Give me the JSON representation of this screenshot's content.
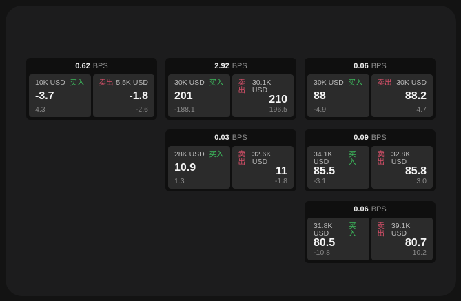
{
  "labels": {
    "bps_unit": "BPS",
    "buy": "买入",
    "sell": "卖出"
  },
  "colors": {
    "buy": "#3cb95c",
    "sell": "#d44f68",
    "card_bg": "#0f0f0f",
    "panel_bg": "#2b2b2b",
    "window_bg": "#1c1c1d",
    "page_bg": "#131313"
  },
  "cards": [
    {
      "row": 1,
      "col": 1,
      "bps": "0.62",
      "buy": {
        "amount": "10K USD",
        "value": "-3.7",
        "sub": "4.3"
      },
      "sell": {
        "amount": "5.5K USD",
        "value": "-1.8",
        "sub": "-2.6"
      }
    },
    {
      "row": 1,
      "col": 2,
      "bps": "2.92",
      "buy": {
        "amount": "30K USD",
        "value": "201",
        "sub": "-188.1"
      },
      "sell": {
        "amount": "30.1K USD",
        "value": "210",
        "sub": "196.5"
      }
    },
    {
      "row": 1,
      "col": 3,
      "bps": "0.06",
      "buy": {
        "amount": "30K USD",
        "value": "88",
        "sub": "-4.9"
      },
      "sell": {
        "amount": "30K USD",
        "value": "88.2",
        "sub": "4.7"
      }
    },
    {
      "row": 2,
      "col": 2,
      "bps": "0.03",
      "buy": {
        "amount": "28K USD",
        "value": "10.9",
        "sub": "1.3"
      },
      "sell": {
        "amount": "32.6K USD",
        "value": "11",
        "sub": "-1.8"
      }
    },
    {
      "row": 2,
      "col": 3,
      "bps": "0.09",
      "buy": {
        "amount": "34.1K USD",
        "value": "85.5",
        "sub": "-3.1"
      },
      "sell": {
        "amount": "32.8K USD",
        "value": "85.8",
        "sub": "3.0"
      }
    },
    {
      "row": 3,
      "col": 3,
      "bps": "0.06",
      "buy": {
        "amount": "31.8K USD",
        "value": "80.5",
        "sub": "-10.8"
      },
      "sell": {
        "amount": "39.1K USD",
        "value": "80.7",
        "sub": "10.2"
      }
    }
  ]
}
